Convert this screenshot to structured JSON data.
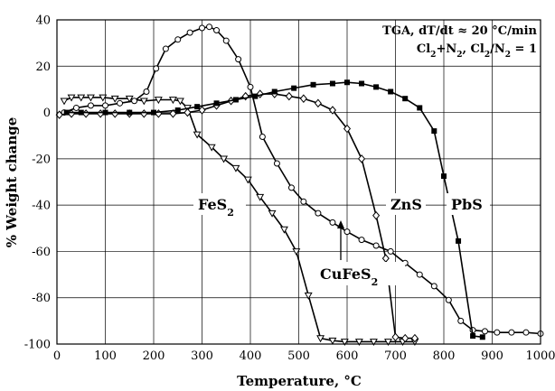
{
  "chart_data": {
    "type": "line",
    "title": "",
    "xlabel": "Temperature, °C",
    "ylabel": "% Weight change",
    "xlim": [
      0,
      1000
    ],
    "ylim": [
      -100,
      40
    ],
    "xticks": [
      0,
      100,
      200,
      300,
      400,
      500,
      600,
      700,
      800,
      900,
      1000
    ],
    "yticks": [
      40,
      20,
      0,
      -20,
      -40,
      -60,
      -80,
      -100
    ],
    "grid": true,
    "legend": "none",
    "annotation": {
      "line1": "TGA, dT/dt ≈ 20 °C/min",
      "line2_a": "Cl",
      "line2_b": "2",
      "line2_c": "+N",
      "line2_d": "2",
      "line2_e": ", Cl",
      "line2_f": "2",
      "line2_g": "/N",
      "line2_h": "2",
      "line2_i": " = 1"
    },
    "series": [
      {
        "name": "FeS2",
        "label_main": "FeS",
        "label_sub": "2",
        "marker": "triangle-down-open",
        "x": [
          15,
          30,
          50,
          70,
          95,
          120,
          150,
          180,
          210,
          240,
          255,
          270,
          290,
          320,
          345,
          370,
          395,
          420,
          445,
          470,
          495,
          520,
          545,
          570,
          595,
          625,
          655,
          685,
          715,
          740
        ],
        "y": [
          5,
          6.5,
          6.5,
          6.5,
          6.5,
          6,
          6,
          5,
          5.5,
          5.5,
          5,
          2,
          -9.5,
          -15,
          -20,
          -24,
          -29,
          -36.5,
          -43.5,
          -50.5,
          -60,
          -79,
          -97.5,
          -98.5,
          -99,
          -99,
          -99,
          -99,
          -99,
          -99
        ]
      },
      {
        "name": "CuFeS2",
        "label_main": "CuFeS",
        "label_sub": "2",
        "marker": "circle-open",
        "x": [
          15,
          40,
          70,
          100,
          130,
          160,
          185,
          205,
          225,
          250,
          275,
          300,
          315,
          330,
          350,
          375,
          400,
          425,
          455,
          485,
          510,
          540,
          570,
          600,
          630,
          660,
          690,
          720,
          750,
          780,
          810,
          835,
          860,
          885,
          910,
          940,
          970,
          1000
        ],
        "y": [
          0,
          2,
          3,
          3,
          4,
          5,
          9,
          19,
          27.5,
          31.5,
          34.5,
          36.5,
          37,
          35.5,
          31,
          23,
          11,
          -10.5,
          -22,
          -32.5,
          -38.5,
          -43.5,
          -47.5,
          -51.5,
          -55,
          -57.5,
          -60,
          -65,
          -70,
          -75,
          -81,
          -90,
          -94,
          -94.5,
          -95,
          -95,
          -95,
          -95.5
        ]
      },
      {
        "name": "ZnS",
        "label_main": "ZnS",
        "label_sub": "",
        "marker": "diamond-open",
        "x": [
          5,
          30,
          60,
          90,
          120,
          150,
          180,
          210,
          240,
          270,
          300,
          330,
          360,
          390,
          420,
          450,
          480,
          510,
          540,
          570,
          600,
          630,
          660,
          680,
          700,
          720,
          740
        ],
        "y": [
          -1,
          -0.5,
          -0.5,
          -0.5,
          -0.5,
          -0.5,
          -0.5,
          -0.5,
          -0.5,
          0,
          1,
          3,
          5,
          7,
          8,
          8,
          7,
          6,
          4,
          1,
          -7,
          -20,
          -44.5,
          -63,
          -97,
          -97.5,
          -97.5
        ]
      },
      {
        "name": "PbS",
        "label_main": "PbS",
        "label_sub": "",
        "marker": "square-filled",
        "x": [
          20,
          50,
          100,
          150,
          200,
          250,
          290,
          330,
          370,
          410,
          450,
          490,
          530,
          570,
          600,
          630,
          660,
          690,
          720,
          750,
          780,
          800,
          830,
          860,
          880
        ],
        "y": [
          0,
          0,
          0,
          0,
          0,
          1,
          2.5,
          4,
          5.5,
          7,
          9,
          10.5,
          12,
          12.5,
          13,
          12.5,
          11,
          9,
          6,
          2,
          -8,
          -27.5,
          -55.5,
          -96.5,
          -97
        ]
      }
    ]
  }
}
